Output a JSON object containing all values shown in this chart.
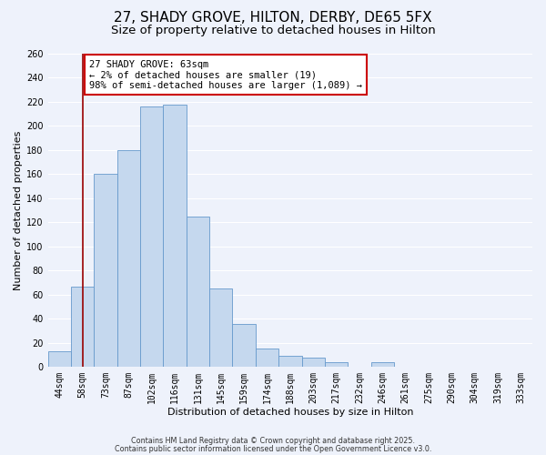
{
  "title": "27, SHADY GROVE, HILTON, DERBY, DE65 5FX",
  "subtitle": "Size of property relative to detached houses in Hilton",
  "xlabel": "Distribution of detached houses by size in Hilton",
  "ylabel": "Number of detached properties",
  "bar_labels": [
    "44sqm",
    "58sqm",
    "73sqm",
    "87sqm",
    "102sqm",
    "116sqm",
    "131sqm",
    "145sqm",
    "159sqm",
    "174sqm",
    "188sqm",
    "203sqm",
    "217sqm",
    "232sqm",
    "246sqm",
    "261sqm",
    "275sqm",
    "290sqm",
    "304sqm",
    "319sqm",
    "333sqm"
  ],
  "bar_values": [
    13,
    67,
    160,
    180,
    216,
    218,
    125,
    65,
    36,
    15,
    9,
    8,
    4,
    0,
    4,
    0,
    0,
    0,
    0,
    0,
    0
  ],
  "bar_color": "#c5d8ee",
  "bar_edge_color": "#6699cc",
  "ylim": [
    0,
    260
  ],
  "yticks": [
    0,
    20,
    40,
    60,
    80,
    100,
    120,
    140,
    160,
    180,
    200,
    220,
    240,
    260
  ],
  "vline_x_index": 1,
  "vline_color": "#990000",
  "annotation_title": "27 SHADY GROVE: 63sqm",
  "annotation_line1": "← 2% of detached houses are smaller (19)",
  "annotation_line2": "98% of semi-detached houses are larger (1,089) →",
  "annotation_box_color": "#ffffff",
  "annotation_box_edge": "#cc0000",
  "footer1": "Contains HM Land Registry data © Crown copyright and database right 2025.",
  "footer2": "Contains public sector information licensed under the Open Government Licence v3.0.",
  "bg_color": "#eef2fb",
  "grid_color": "#ffffff",
  "title_fontsize": 11,
  "subtitle_fontsize": 9.5,
  "axis_label_fontsize": 8,
  "tick_fontsize": 7,
  "annotation_fontsize": 7.5,
  "footer_fontsize": 5.8
}
